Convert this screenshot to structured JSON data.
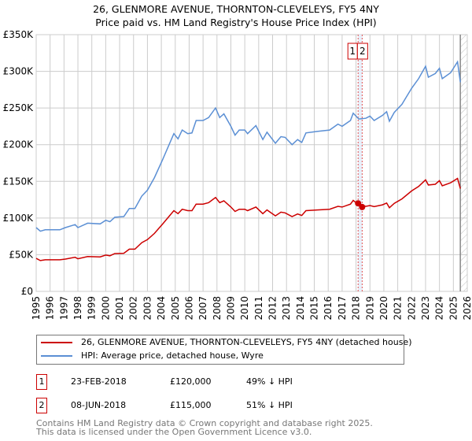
{
  "title_line1": "26, GLENMORE AVENUE, THORNTON-CLEVELEYS, FY5 4NY",
  "title_line2": "Price paid vs. HM Land Registry's House Price Index (HPI)",
  "chart_data": {
    "type": "line",
    "title": "26, GLENMORE AVENUE, THORNTON-CLEVELEYS, FY5 4NY — Price paid vs. HM Land Registry's House Price Index (HPI)",
    "xlim": [
      1995,
      2026
    ],
    "ylim": [
      0,
      350000
    ],
    "x_ticks": [
      1995,
      1996,
      1997,
      1998,
      1999,
      2000,
      2001,
      2002,
      2003,
      2004,
      2005,
      2006,
      2007,
      2008,
      2009,
      2010,
      2011,
      2012,
      2013,
      2014,
      2015,
      2016,
      2017,
      2018,
      2019,
      2020,
      2021,
      2022,
      2023,
      2024,
      2025,
      2026
    ],
    "y_ticks": [
      0,
      50000,
      100000,
      150000,
      200000,
      250000,
      300000,
      350000
    ],
    "y_tick_labels": [
      "£0",
      "£50K",
      "£100K",
      "£150K",
      "£200K",
      "£250K",
      "£300K",
      "£350K"
    ],
    "grid": true,
    "x": [
      1995.0,
      1995.3,
      1995.65,
      1996.7,
      1997.1,
      1997.8,
      1998.0,
      1998.7,
      1999.6,
      2000.0,
      2000.3,
      2000.65,
      2001.3,
      2001.7,
      2002.1,
      2002.6,
      2003.0,
      2003.5,
      2004.1,
      2004.9,
      2005.2,
      2005.5,
      2005.9,
      2006.2,
      2006.5,
      2007.0,
      2007.4,
      2007.9,
      2008.2,
      2008.5,
      2009.0,
      2009.3,
      2009.6,
      2010.0,
      2010.2,
      2010.8,
      2011.3,
      2011.6,
      2012.2,
      2012.6,
      2012.9,
      2013.4,
      2013.8,
      2014.1,
      2014.4,
      2015.2,
      2016.1,
      2016.7,
      2017.0,
      2017.6,
      2017.8,
      2018.2,
      2018.7,
      2019.0,
      2019.3,
      2019.9,
      2020.2,
      2020.4,
      2020.75,
      2021.3,
      2022.0,
      2022.5,
      2023.0,
      2023.2,
      2023.7,
      2024.0,
      2024.2,
      2024.8,
      2025.3,
      2025.5
    ],
    "series": [
      {
        "name": "26, GLENMORE AVENUE, THORNTON-CLEVELEYS, FY5 4NY (detached house)",
        "color": "#cc0000",
        "values": [
          45000,
          42000,
          43000,
          43000,
          44000,
          46500,
          44500,
          47500,
          47000,
          49500,
          48500,
          51500,
          52000,
          57500,
          57500,
          66500,
          70500,
          79000,
          92000,
          110000,
          106000,
          112000,
          110000,
          110000,
          119000,
          119000,
          121000,
          128000,
          121000,
          123500,
          115000,
          109000,
          112000,
          112000,
          110000,
          115000,
          106000,
          111000,
          103000,
          108000,
          107000,
          102000,
          105500,
          103500,
          110000,
          111000,
          112000,
          116000,
          115000,
          119000,
          124000,
          118000,
          116000,
          117000,
          115500,
          118000,
          120500,
          114000,
          120000,
          126000,
          137000,
          143000,
          152000,
          145000,
          146000,
          151000,
          144000,
          148000,
          154000,
          140000
        ]
      },
      {
        "name": "HPI: Average price, detached house, Wyre",
        "color": "#5b8fd4",
        "values": [
          87000,
          82000,
          84000,
          84000,
          87000,
          91000,
          87000,
          93000,
          92000,
          97000,
          95000,
          101000,
          102000,
          113000,
          113000,
          130000,
          138000,
          155000,
          180000,
          215000,
          208000,
          220000,
          215000,
          216000,
          233000,
          233000,
          237000,
          250000,
          237000,
          242000,
          225000,
          213000,
          220000,
          220000,
          215000,
          226000,
          207000,
          217000,
          202000,
          211000,
          210000,
          200000,
          207000,
          203000,
          216000,
          218000,
          220000,
          228000,
          225000,
          233000,
          243000,
          235000,
          236000,
          239000,
          233000,
          240000,
          245000,
          232000,
          244000,
          255000,
          277000,
          290000,
          307000,
          292000,
          297000,
          304000,
          290000,
          298000,
          313000,
          285000
        ]
      }
    ],
    "sales": [
      {
        "id": "1",
        "x": 2018.15,
        "price": 120000
      },
      {
        "id": "2",
        "x": 2018.44,
        "price": 115000
      }
    ],
    "forecast_hatch_from": 2025.5,
    "legend_placement": "below"
  },
  "legend": {
    "property_label": "26, GLENMORE AVENUE, THORNTON-CLEVELEYS, FY5 4NY (detached house)",
    "hpi_label": "HPI: Average price, detached house, Wyre"
  },
  "transactions": [
    {
      "id": "1",
      "date": "23-FEB-2018",
      "price": "£120,000",
      "hpi": "49% ↓ HPI"
    },
    {
      "id": "2",
      "date": "08-JUN-2018",
      "price": "£115,000",
      "hpi": "51% ↓ HPI"
    }
  ],
  "footer_line1": "Contains HM Land Registry data © Crown copyright and database right 2025.",
  "footer_line2": "This data is licensed under the Open Government Licence v3.0."
}
